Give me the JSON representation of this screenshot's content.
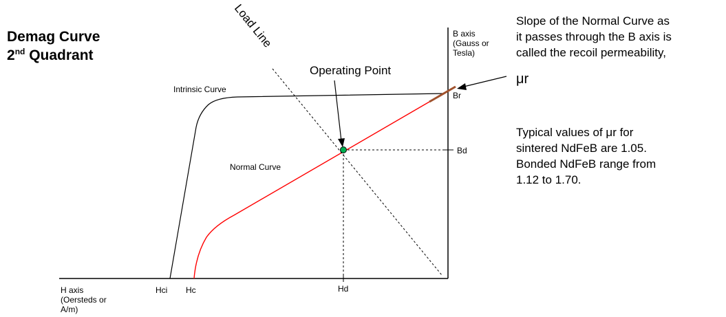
{
  "title": {
    "line1": "Demag Curve",
    "line2_base": "2",
    "line2_sup": "nd",
    "line2_rest": " Quadrant"
  },
  "axes": {
    "b_axis": [
      "B axis",
      "(Gauss or",
      "Tesla)"
    ],
    "h_axis": [
      "H axis",
      "(Oersteds or",
      "A/m)"
    ]
  },
  "labels": {
    "load_line": "Load Line",
    "operating_point": "Operating Point",
    "intrinsic_curve": "Intrinsic Curve",
    "normal_curve": "Normal Curve",
    "br": "Br",
    "bd": "Bd",
    "hci": "Hci",
    "hc": "Hc",
    "hd": "Hd"
  },
  "notes": {
    "slope": [
      "Slope of the Normal Curve as",
      "it passes through the B axis is",
      "called the recoil permeability,"
    ],
    "mu_r": "μr",
    "typical": [
      "Typical values of μr for",
      "sintered NdFeB are 1.05.",
      "Bonded NdFeB range from",
      "1.12 to 1.70."
    ]
  },
  "colors": {
    "normal_curve": "#ff0000",
    "intrinsic_curve": "#000000",
    "recoil_segment": "#a0522d",
    "operating_point": "#00b050"
  }
}
